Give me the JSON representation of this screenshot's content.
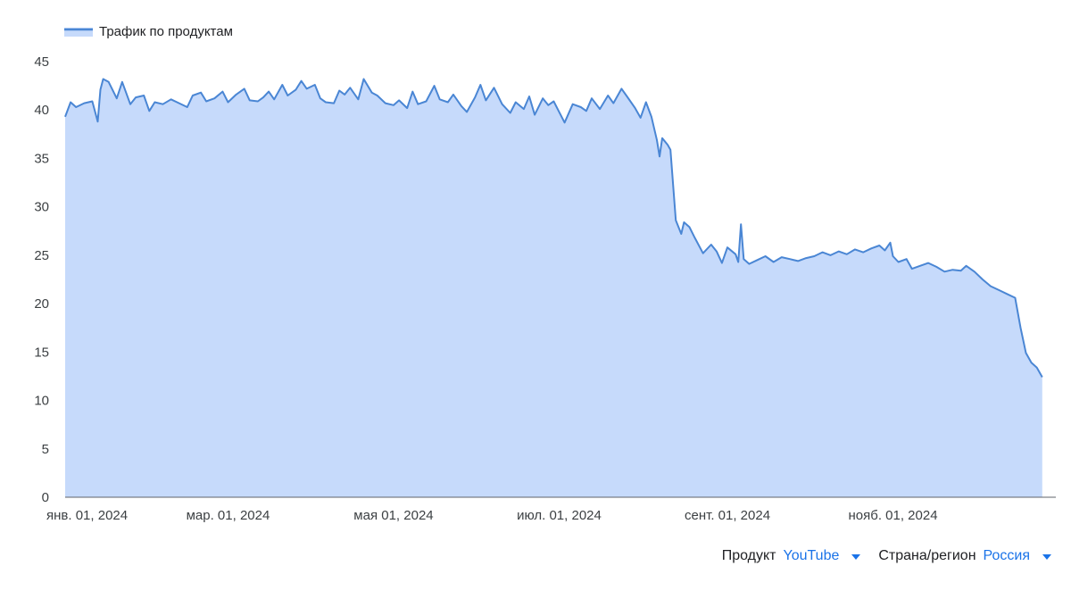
{
  "chart_data": {
    "type": "area",
    "legend": {
      "label": "Трафик по продуктам",
      "position": "top-left"
    },
    "x_start": "2024-01-01",
    "x_end": "2024-12-31",
    "xticks": [
      {
        "date": "2024-01-01",
        "label": "янв. 01, 2024"
      },
      {
        "date": "2024-03-01",
        "label": "мар. 01, 2024"
      },
      {
        "date": "2024-05-01",
        "label": "мая 01, 2024"
      },
      {
        "date": "2024-07-01",
        "label": "июл. 01, 2024"
      },
      {
        "date": "2024-09-01",
        "label": "сент. 01, 2024"
      },
      {
        "date": "2024-11-01",
        "label": "нояб. 01, 2024"
      }
    ],
    "ylim": [
      0,
      45
    ],
    "yticks": [
      0,
      5,
      10,
      15,
      20,
      25,
      30,
      35,
      40,
      45
    ],
    "grid": false,
    "series": [
      {
        "name": "Трафик по продуктам",
        "color": "#4a86d4",
        "fill": "#c6dafb",
        "points": [
          [
            "2024-01-01",
            39.3
          ],
          [
            "2024-01-03",
            40.8
          ],
          [
            "2024-01-05",
            40.3
          ],
          [
            "2024-01-08",
            40.7
          ],
          [
            "2024-01-11",
            40.9
          ],
          [
            "2024-01-13",
            38.8
          ],
          [
            "2024-01-14",
            42.1
          ],
          [
            "2024-01-15",
            43.2
          ],
          [
            "2024-01-17",
            42.9
          ],
          [
            "2024-01-20",
            41.2
          ],
          [
            "2024-01-22",
            42.9
          ],
          [
            "2024-01-25",
            40.6
          ],
          [
            "2024-01-27",
            41.3
          ],
          [
            "2024-01-30",
            41.5
          ],
          [
            "2024-02-01",
            39.9
          ],
          [
            "2024-02-03",
            40.8
          ],
          [
            "2024-02-06",
            40.6
          ],
          [
            "2024-02-09",
            41.1
          ],
          [
            "2024-02-12",
            40.7
          ],
          [
            "2024-02-15",
            40.3
          ],
          [
            "2024-02-17",
            41.5
          ],
          [
            "2024-02-20",
            41.8
          ],
          [
            "2024-02-22",
            40.9
          ],
          [
            "2024-02-25",
            41.2
          ],
          [
            "2024-02-28",
            41.9
          ],
          [
            "2024-03-01",
            40.8
          ],
          [
            "2024-03-04",
            41.6
          ],
          [
            "2024-03-07",
            42.2
          ],
          [
            "2024-03-09",
            41.0
          ],
          [
            "2024-03-12",
            40.9
          ],
          [
            "2024-03-14",
            41.3
          ],
          [
            "2024-03-16",
            41.9
          ],
          [
            "2024-03-18",
            41.1
          ],
          [
            "2024-03-21",
            42.6
          ],
          [
            "2024-03-23",
            41.5
          ],
          [
            "2024-03-26",
            42.1
          ],
          [
            "2024-03-28",
            43.0
          ],
          [
            "2024-03-30",
            42.2
          ],
          [
            "2024-04-02",
            42.6
          ],
          [
            "2024-04-04",
            41.2
          ],
          [
            "2024-04-06",
            40.8
          ],
          [
            "2024-04-09",
            40.7
          ],
          [
            "2024-04-11",
            42.0
          ],
          [
            "2024-04-13",
            41.6
          ],
          [
            "2024-04-15",
            42.3
          ],
          [
            "2024-04-18",
            41.1
          ],
          [
            "2024-04-20",
            43.2
          ],
          [
            "2024-04-23",
            41.8
          ],
          [
            "2024-04-25",
            41.5
          ],
          [
            "2024-04-28",
            40.7
          ],
          [
            "2024-05-01",
            40.5
          ],
          [
            "2024-05-03",
            41.0
          ],
          [
            "2024-05-06",
            40.2
          ],
          [
            "2024-05-08",
            41.9
          ],
          [
            "2024-05-10",
            40.6
          ],
          [
            "2024-05-13",
            40.9
          ],
          [
            "2024-05-16",
            42.5
          ],
          [
            "2024-05-18",
            41.1
          ],
          [
            "2024-05-21",
            40.8
          ],
          [
            "2024-05-23",
            41.6
          ],
          [
            "2024-05-26",
            40.4
          ],
          [
            "2024-05-28",
            39.8
          ],
          [
            "2024-05-31",
            41.3
          ],
          [
            "2024-06-02",
            42.6
          ],
          [
            "2024-06-04",
            41.0
          ],
          [
            "2024-06-07",
            42.3
          ],
          [
            "2024-06-10",
            40.6
          ],
          [
            "2024-06-13",
            39.7
          ],
          [
            "2024-06-15",
            40.8
          ],
          [
            "2024-06-18",
            40.1
          ],
          [
            "2024-06-20",
            41.4
          ],
          [
            "2024-06-22",
            39.5
          ],
          [
            "2024-06-25",
            41.2
          ],
          [
            "2024-06-27",
            40.5
          ],
          [
            "2024-06-29",
            40.9
          ],
          [
            "2024-07-01",
            39.8
          ],
          [
            "2024-07-03",
            38.7
          ],
          [
            "2024-07-06",
            40.6
          ],
          [
            "2024-07-09",
            40.3
          ],
          [
            "2024-07-11",
            39.9
          ],
          [
            "2024-07-13",
            41.2
          ],
          [
            "2024-07-16",
            40.1
          ],
          [
            "2024-07-19",
            41.5
          ],
          [
            "2024-07-21",
            40.7
          ],
          [
            "2024-07-24",
            42.2
          ],
          [
            "2024-07-26",
            41.4
          ],
          [
            "2024-07-29",
            40.2
          ],
          [
            "2024-07-31",
            39.2
          ],
          [
            "2024-08-02",
            40.8
          ],
          [
            "2024-08-04",
            39.3
          ],
          [
            "2024-08-06",
            36.9
          ],
          [
            "2024-08-07",
            35.2
          ],
          [
            "2024-08-08",
            37.1
          ],
          [
            "2024-08-10",
            36.4
          ],
          [
            "2024-08-11",
            35.9
          ],
          [
            "2024-08-13",
            28.6
          ],
          [
            "2024-08-15",
            27.2
          ],
          [
            "2024-08-16",
            28.4
          ],
          [
            "2024-08-18",
            27.9
          ],
          [
            "2024-08-20",
            26.8
          ],
          [
            "2024-08-23",
            25.2
          ],
          [
            "2024-08-26",
            26.1
          ],
          [
            "2024-08-28",
            25.4
          ],
          [
            "2024-08-30",
            24.2
          ],
          [
            "2024-09-01",
            25.8
          ],
          [
            "2024-09-04",
            25.1
          ],
          [
            "2024-09-05",
            24.3
          ],
          [
            "2024-09-06",
            28.2
          ],
          [
            "2024-09-07",
            24.6
          ],
          [
            "2024-09-09",
            24.1
          ],
          [
            "2024-09-12",
            24.5
          ],
          [
            "2024-09-15",
            24.9
          ],
          [
            "2024-09-18",
            24.3
          ],
          [
            "2024-09-21",
            24.8
          ],
          [
            "2024-09-24",
            24.6
          ],
          [
            "2024-09-27",
            24.4
          ],
          [
            "2024-09-30",
            24.7
          ],
          [
            "2024-10-03",
            24.9
          ],
          [
            "2024-10-06",
            25.3
          ],
          [
            "2024-10-09",
            25.0
          ],
          [
            "2024-10-12",
            25.4
          ],
          [
            "2024-10-15",
            25.1
          ],
          [
            "2024-10-18",
            25.6
          ],
          [
            "2024-10-21",
            25.3
          ],
          [
            "2024-10-24",
            25.7
          ],
          [
            "2024-10-27",
            26.0
          ],
          [
            "2024-10-29",
            25.5
          ],
          [
            "2024-10-31",
            26.3
          ],
          [
            "2024-11-01",
            24.9
          ],
          [
            "2024-11-03",
            24.3
          ],
          [
            "2024-11-06",
            24.6
          ],
          [
            "2024-11-08",
            23.6
          ],
          [
            "2024-11-11",
            23.9
          ],
          [
            "2024-11-14",
            24.2
          ],
          [
            "2024-11-17",
            23.8
          ],
          [
            "2024-11-20",
            23.3
          ],
          [
            "2024-11-23",
            23.5
          ],
          [
            "2024-11-26",
            23.4
          ],
          [
            "2024-11-28",
            23.9
          ],
          [
            "2024-12-01",
            23.3
          ],
          [
            "2024-12-04",
            22.5
          ],
          [
            "2024-12-07",
            21.8
          ],
          [
            "2024-12-10",
            21.4
          ],
          [
            "2024-12-13",
            21.0
          ],
          [
            "2024-12-16",
            20.6
          ],
          [
            "2024-12-18",
            17.5
          ],
          [
            "2024-12-20",
            14.9
          ],
          [
            "2024-12-22",
            13.9
          ],
          [
            "2024-12-24",
            13.4
          ],
          [
            "2024-12-26",
            12.4
          ]
        ]
      }
    ]
  },
  "filters": {
    "product": {
      "label": "Продукт",
      "value": "YouTube"
    },
    "region": {
      "label": "Страна/регион",
      "value": "Россия"
    }
  }
}
